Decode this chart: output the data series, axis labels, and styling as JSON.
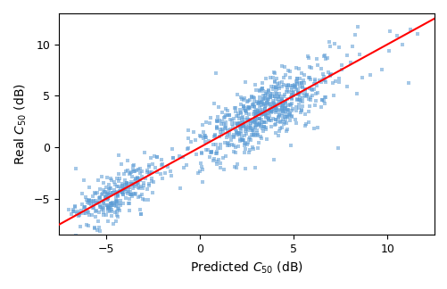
{
  "title": "",
  "xlabel": "Predicted $C_{50}$ (dB)",
  "ylabel": "Real $C_{50}$ (dB)",
  "scatter_color": "#5b9bd5",
  "line_color": "red",
  "xlim": [
    -7.5,
    12.5
  ],
  "ylim": [
    -8.5,
    13.0
  ],
  "xticks": [
    -5,
    0,
    5,
    10
  ],
  "yticks": [
    -5,
    0,
    5,
    10
  ],
  "marker_size": 3,
  "marker_style": "s",
  "alpha": 0.55,
  "seed": 7,
  "line_start": -7.5,
  "line_end": 12.5,
  "slope": 1.0,
  "intercept": 0.0,
  "cluster1_n": 600,
  "cluster1_x_mean": 3.5,
  "cluster1_x_std": 1.8,
  "cluster1_noise": 1.5,
  "cluster2_n": 300,
  "cluster2_x_mean": -4.5,
  "cluster2_x_std": 1.2,
  "cluster2_noise": 1.2,
  "outlier_n": 80,
  "outlier_x_mean": 5.0,
  "outlier_x_std": 3.5,
  "outlier_noise": 2.5
}
